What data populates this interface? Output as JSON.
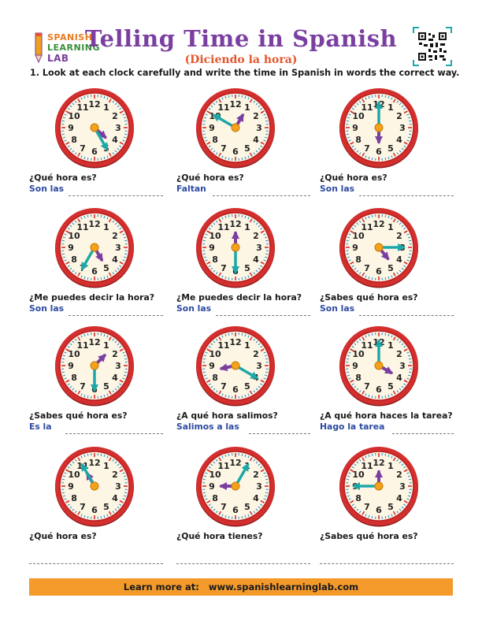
{
  "logo": {
    "line1": "SPANISH",
    "line2": "LEARNING",
    "line3": "LAB"
  },
  "title": "Telling Time in Spanish",
  "subtitle": "(Diciendo la hora)",
  "instruction": "1. Look at each clock carefully and write the time in Spanish in words the correct way.",
  "colors": {
    "title": "#7a3fa0",
    "subtitle": "#e4572e",
    "answer": "#2e4aa0",
    "clock_rim": "#d32f2f",
    "hour_hand": "#7a3fa0",
    "minute_hand": "#1ea7a8",
    "footer": "#f39a2b"
  },
  "clock_numbers": [
    "12",
    "1",
    "2",
    "3",
    "4",
    "5",
    "6",
    "7",
    "8",
    "9",
    "10",
    "11"
  ],
  "exercises": [
    {
      "question": "¿Qué hora es?",
      "answer": "Son las",
      "hour_pos": 4.4,
      "minute": 25
    },
    {
      "question": "¿Qué hora es?",
      "answer": "Faltan",
      "hour_pos": 1.0,
      "minute": 50
    },
    {
      "question": "¿Qué hora es?",
      "answer": "Son las",
      "hour_pos": 6.0,
      "minute": 0
    },
    {
      "question": "¿Me puedes decir la hora?",
      "answer": "Son las",
      "hour_pos": 5.0,
      "minute": 35
    },
    {
      "question": "¿Me puedes decir la hora?",
      "answer": "Son las",
      "hour_pos": 12.0,
      "minute": 30
    },
    {
      "question": "¿Sabes qué hora es?",
      "answer": "Son las",
      "hour_pos": 4.7,
      "minute": 15
    },
    {
      "question": "¿Sabes qué hora es?",
      "answer": "Es la",
      "hour_pos": 1.5,
      "minute": 30
    },
    {
      "question": "¿A qué hora salimos?",
      "answer": "Salimos a las",
      "hour_pos": 8.6,
      "minute": 20
    },
    {
      "question": "¿A qué hora haces la tarea?",
      "answer": "Hago la tarea",
      "hour_pos": 4.0,
      "minute": 0
    },
    {
      "question": "¿Qué hora es?",
      "answer": "",
      "hour_pos": 11.0,
      "minute": 55
    },
    {
      "question": "¿Qué hora tienes?",
      "answer": "",
      "hour_pos": 9.0,
      "minute": 5
    },
    {
      "question": "¿Sabes qué hora es?",
      "answer": "",
      "hour_pos": 12.0,
      "minute": 45
    }
  ],
  "footer": {
    "label": "Learn more at:",
    "url": "www.spanishlearninglab.com"
  }
}
